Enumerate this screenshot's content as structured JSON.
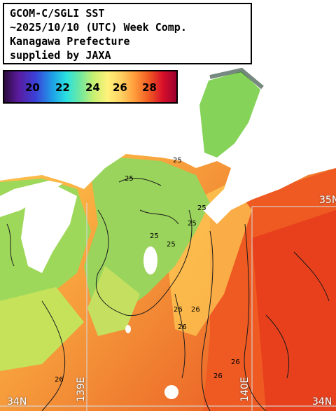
{
  "title": {
    "line1": "GCOM-C/SGLI SST",
    "line2": "~2025/10/10 (UTC) Week Comp.",
    "line3": "Kanagawa Prefecture",
    "line4": "supplied by JAXA"
  },
  "legend": {
    "ticks": [
      "20",
      "22",
      "24",
      "26",
      "28"
    ],
    "colors": [
      "#2b0a3d",
      "#3b3fd8",
      "#29e0e0",
      "#c8f070",
      "#fff27a",
      "#ff9a3a",
      "#d8102a"
    ]
  },
  "grid_labels": {
    "lon_139": "139E",
    "lon_140": "140E",
    "lat_34_left": "34N",
    "lat_34_right": "34N",
    "lat_35_right": "35N"
  },
  "contour_labels": [
    "25",
    "25",
    "25",
    "25",
    "25",
    "26",
    "26",
    "26",
    "26",
    "26",
    "25",
    "26"
  ],
  "colors": {
    "land": "#ffffff",
    "coastal_green": "#8fd65a",
    "warm_orange": "#f5a040",
    "hot_red": "#ef4a1e"
  }
}
